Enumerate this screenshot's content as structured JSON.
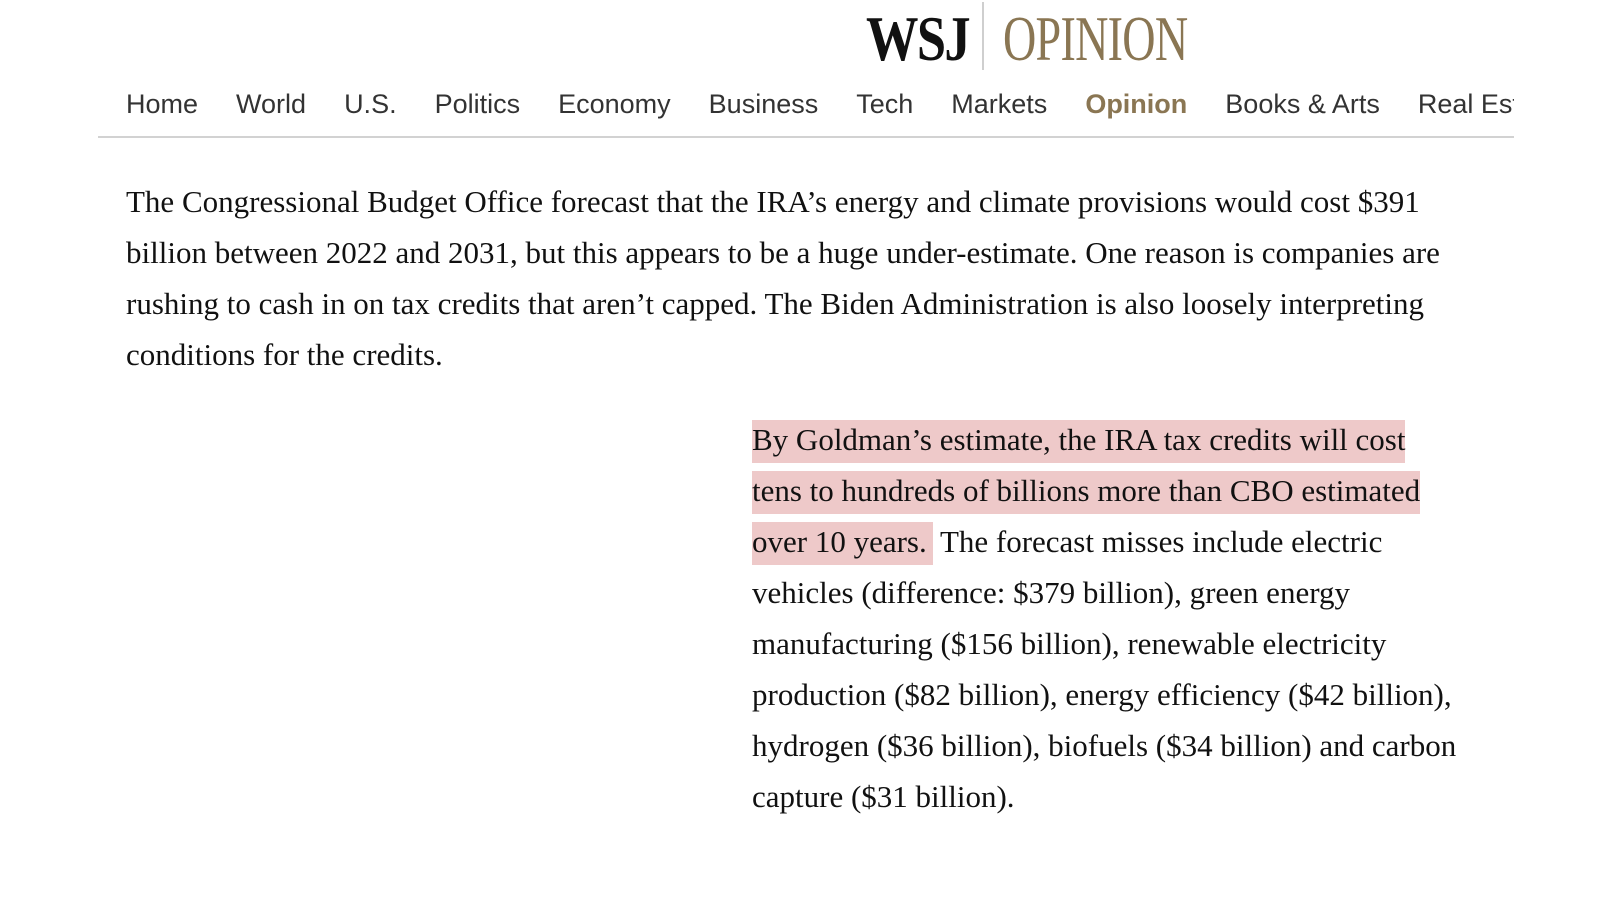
{
  "masthead": {
    "brand": "WSJ",
    "section": "OPINION"
  },
  "nav": {
    "items": [
      "Home",
      "World",
      "U.S.",
      "Politics",
      "Economy",
      "Business",
      "Tech",
      "Markets",
      "Opinion",
      "Books & Arts",
      "Real Estate"
    ],
    "active": "Opinion"
  },
  "article": {
    "paragraph1": "The Congressional Budget Office forecast that the IRA’s energy and climate provisions would cost $391 billion between 2022 and 2031, but this appears to be a huge under-estimate. One reason is companies are rushing to cash in on tax credits that aren’t capped. The Biden Administration is also loosely interpreting conditions for the credits.",
    "paragraph2_highlight": "By Goldman’s estimate, the IRA tax credits will cost tens to hundreds of billions more than CBO estimated over 10 years.",
    "paragraph2_rest": " The forecast misses include electric vehicles (difference: $379 billion), green energy manufacturing ($156 billion), renewable electricity production ($82 billion), energy efficiency ($42 billion), hydrogen ($36 billion), biofuels ($34 billion) and carbon capture ($31 billion)."
  },
  "colors": {
    "opinion_accent": "#8a7653",
    "highlight": "#eec9c9",
    "nav_divider": "#d2d2d2"
  }
}
